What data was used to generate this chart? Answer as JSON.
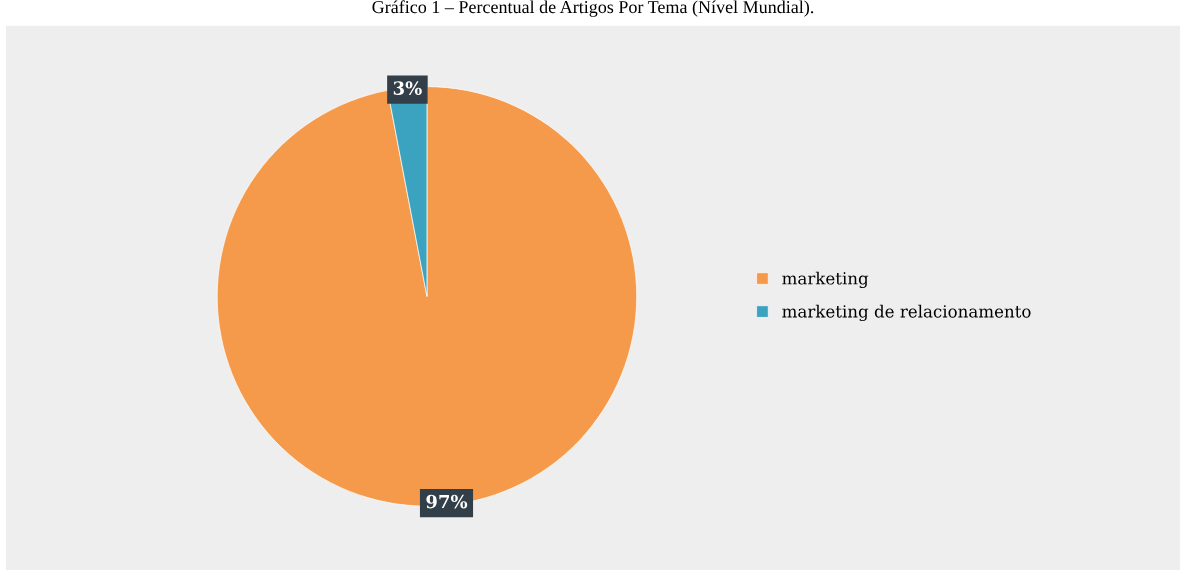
{
  "chart_data": {
    "type": "pie",
    "title": "Gráfico 1 – Percentual de Artigos Por Tema (Nível Mundial).",
    "categories": [
      "marketing",
      "marketing de relacionamento"
    ],
    "values": [
      97,
      3
    ],
    "colors": [
      "#f59a4a",
      "#3ba3c0"
    ],
    "value_labels": [
      "97%",
      "3%"
    ],
    "legend": "right"
  }
}
